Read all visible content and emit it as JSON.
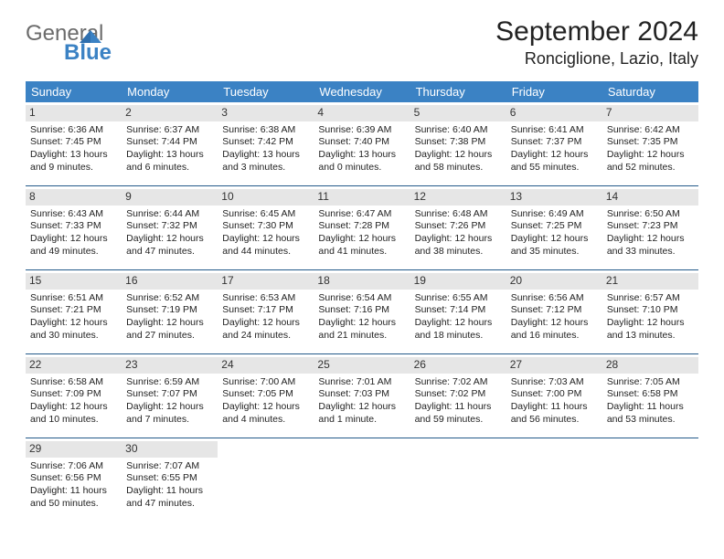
{
  "logo": {
    "word1": "General",
    "word2": "Blue"
  },
  "title": "September 2024",
  "location": "Ronciglione, Lazio, Italy",
  "colors": {
    "header_bg": "#3b82c4",
    "header_text": "#ffffff",
    "daynum_bg": "#e6e6e6",
    "row_border": "#235a8a"
  },
  "weekdays": [
    "Sunday",
    "Monday",
    "Tuesday",
    "Wednesday",
    "Thursday",
    "Friday",
    "Saturday"
  ],
  "days": [
    {
      "n": "1",
      "sunrise": "Sunrise: 6:36 AM",
      "sunset": "Sunset: 7:45 PM",
      "daylight": "Daylight: 13 hours and 9 minutes."
    },
    {
      "n": "2",
      "sunrise": "Sunrise: 6:37 AM",
      "sunset": "Sunset: 7:44 PM",
      "daylight": "Daylight: 13 hours and 6 minutes."
    },
    {
      "n": "3",
      "sunrise": "Sunrise: 6:38 AM",
      "sunset": "Sunset: 7:42 PM",
      "daylight": "Daylight: 13 hours and 3 minutes."
    },
    {
      "n": "4",
      "sunrise": "Sunrise: 6:39 AM",
      "sunset": "Sunset: 7:40 PM",
      "daylight": "Daylight: 13 hours and 0 minutes."
    },
    {
      "n": "5",
      "sunrise": "Sunrise: 6:40 AM",
      "sunset": "Sunset: 7:38 PM",
      "daylight": "Daylight: 12 hours and 58 minutes."
    },
    {
      "n": "6",
      "sunrise": "Sunrise: 6:41 AM",
      "sunset": "Sunset: 7:37 PM",
      "daylight": "Daylight: 12 hours and 55 minutes."
    },
    {
      "n": "7",
      "sunrise": "Sunrise: 6:42 AM",
      "sunset": "Sunset: 7:35 PM",
      "daylight": "Daylight: 12 hours and 52 minutes."
    },
    {
      "n": "8",
      "sunrise": "Sunrise: 6:43 AM",
      "sunset": "Sunset: 7:33 PM",
      "daylight": "Daylight: 12 hours and 49 minutes."
    },
    {
      "n": "9",
      "sunrise": "Sunrise: 6:44 AM",
      "sunset": "Sunset: 7:32 PM",
      "daylight": "Daylight: 12 hours and 47 minutes."
    },
    {
      "n": "10",
      "sunrise": "Sunrise: 6:45 AM",
      "sunset": "Sunset: 7:30 PM",
      "daylight": "Daylight: 12 hours and 44 minutes."
    },
    {
      "n": "11",
      "sunrise": "Sunrise: 6:47 AM",
      "sunset": "Sunset: 7:28 PM",
      "daylight": "Daylight: 12 hours and 41 minutes."
    },
    {
      "n": "12",
      "sunrise": "Sunrise: 6:48 AM",
      "sunset": "Sunset: 7:26 PM",
      "daylight": "Daylight: 12 hours and 38 minutes."
    },
    {
      "n": "13",
      "sunrise": "Sunrise: 6:49 AM",
      "sunset": "Sunset: 7:25 PM",
      "daylight": "Daylight: 12 hours and 35 minutes."
    },
    {
      "n": "14",
      "sunrise": "Sunrise: 6:50 AM",
      "sunset": "Sunset: 7:23 PM",
      "daylight": "Daylight: 12 hours and 33 minutes."
    },
    {
      "n": "15",
      "sunrise": "Sunrise: 6:51 AM",
      "sunset": "Sunset: 7:21 PM",
      "daylight": "Daylight: 12 hours and 30 minutes."
    },
    {
      "n": "16",
      "sunrise": "Sunrise: 6:52 AM",
      "sunset": "Sunset: 7:19 PM",
      "daylight": "Daylight: 12 hours and 27 minutes."
    },
    {
      "n": "17",
      "sunrise": "Sunrise: 6:53 AM",
      "sunset": "Sunset: 7:17 PM",
      "daylight": "Daylight: 12 hours and 24 minutes."
    },
    {
      "n": "18",
      "sunrise": "Sunrise: 6:54 AM",
      "sunset": "Sunset: 7:16 PM",
      "daylight": "Daylight: 12 hours and 21 minutes."
    },
    {
      "n": "19",
      "sunrise": "Sunrise: 6:55 AM",
      "sunset": "Sunset: 7:14 PM",
      "daylight": "Daylight: 12 hours and 18 minutes."
    },
    {
      "n": "20",
      "sunrise": "Sunrise: 6:56 AM",
      "sunset": "Sunset: 7:12 PM",
      "daylight": "Daylight: 12 hours and 16 minutes."
    },
    {
      "n": "21",
      "sunrise": "Sunrise: 6:57 AM",
      "sunset": "Sunset: 7:10 PM",
      "daylight": "Daylight: 12 hours and 13 minutes."
    },
    {
      "n": "22",
      "sunrise": "Sunrise: 6:58 AM",
      "sunset": "Sunset: 7:09 PM",
      "daylight": "Daylight: 12 hours and 10 minutes."
    },
    {
      "n": "23",
      "sunrise": "Sunrise: 6:59 AM",
      "sunset": "Sunset: 7:07 PM",
      "daylight": "Daylight: 12 hours and 7 minutes."
    },
    {
      "n": "24",
      "sunrise": "Sunrise: 7:00 AM",
      "sunset": "Sunset: 7:05 PM",
      "daylight": "Daylight: 12 hours and 4 minutes."
    },
    {
      "n": "25",
      "sunrise": "Sunrise: 7:01 AM",
      "sunset": "Sunset: 7:03 PM",
      "daylight": "Daylight: 12 hours and 1 minute."
    },
    {
      "n": "26",
      "sunrise": "Sunrise: 7:02 AM",
      "sunset": "Sunset: 7:02 PM",
      "daylight": "Daylight: 11 hours and 59 minutes."
    },
    {
      "n": "27",
      "sunrise": "Sunrise: 7:03 AM",
      "sunset": "Sunset: 7:00 PM",
      "daylight": "Daylight: 11 hours and 56 minutes."
    },
    {
      "n": "28",
      "sunrise": "Sunrise: 7:05 AM",
      "sunset": "Sunset: 6:58 PM",
      "daylight": "Daylight: 11 hours and 53 minutes."
    },
    {
      "n": "29",
      "sunrise": "Sunrise: 7:06 AM",
      "sunset": "Sunset: 6:56 PM",
      "daylight": "Daylight: 11 hours and 50 minutes."
    },
    {
      "n": "30",
      "sunrise": "Sunrise: 7:07 AM",
      "sunset": "Sunset: 6:55 PM",
      "daylight": "Daylight: 11 hours and 47 minutes."
    }
  ]
}
